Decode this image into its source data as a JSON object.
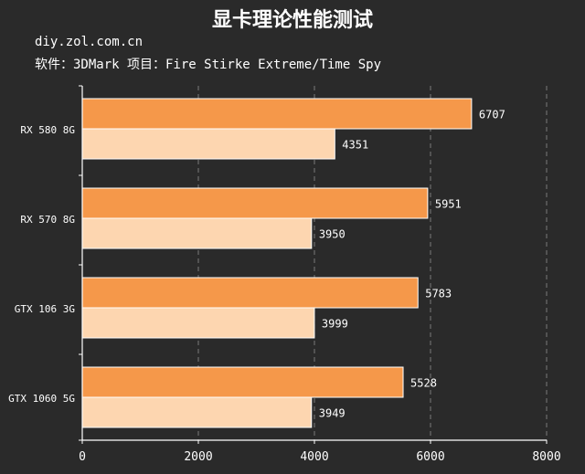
{
  "chart_data": {
    "type": "bar",
    "orientation": "horizontal",
    "title": "显卡理论性能测试",
    "subtitle_lines": [
      "diy.zol.com.cn",
      "软件：3DMark 项目：Fire Stirke Extreme/Time Spy"
    ],
    "categories": [
      "RX 580 8G",
      "RX 570 8G",
      "GTX 106 3G",
      "GTX 1060 5G"
    ],
    "series": [
      {
        "values": [
          6707,
          5951,
          5783,
          5528
        ],
        "color": "#f5984a"
      },
      {
        "values": [
          4351,
          3950,
          3999,
          3949
        ],
        "color": "#fdd6b0"
      }
    ],
    "xlim": [
      0,
      8000
    ],
    "xticks": [
      "0",
      "2000",
      "4000",
      "6000",
      "8000"
    ],
    "grid": true,
    "xlabel": "",
    "ylabel": ""
  },
  "colors": {
    "background": "#2a2a2a",
    "grid": "#7a7a7a",
    "text": "#ffffff"
  }
}
